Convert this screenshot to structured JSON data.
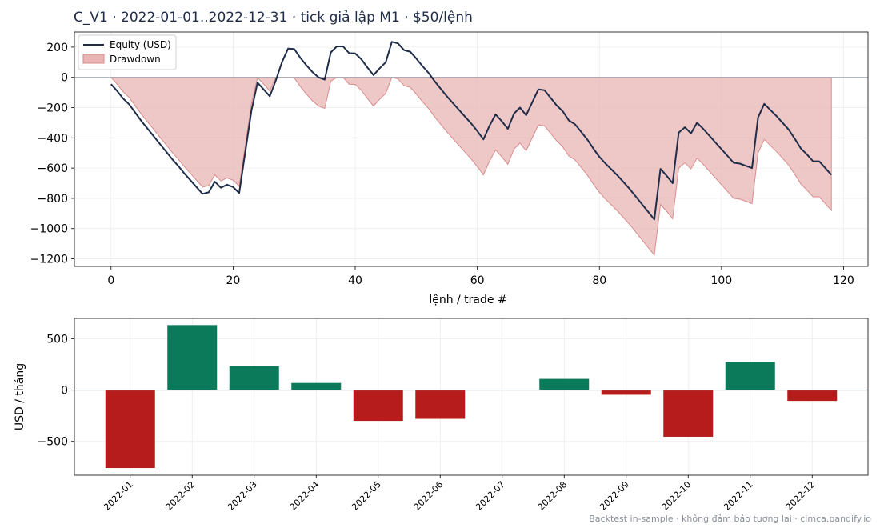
{
  "title": "C_V1 · 2022-01-01..2022-12-31 · tick giả lập M1 · $50/lệnh",
  "footer": "Backtest in-sample · không đảm bảo tương lai · clmca.pandify.io",
  "colors": {
    "equity": "#1f2d4a",
    "drawdown_fill": "#e8b4b4",
    "drawdown_edge": "#d98c8c",
    "positive": "#0b7a5a",
    "negative": "#b71c1c",
    "zero_line": "#9aa3b0",
    "grid": "#ececec"
  },
  "chart_data": [
    {
      "type": "line",
      "xlabel": "lệnh / trade #",
      "ylabel": "",
      "xlim": [
        -6,
        124
      ],
      "ylim": [
        -1250,
        300
      ],
      "grid": true,
      "legend_position": "top-left",
      "x_ticks": [
        0,
        20,
        40,
        60,
        80,
        100,
        120
      ],
      "y_ticks": [
        200,
        0,
        -200,
        -400,
        -600,
        -800,
        -1000,
        -1200
      ],
      "series": [
        {
          "name": "Equity (USD)",
          "x": [
            0,
            1,
            2,
            3,
            4,
            5,
            6,
            7,
            8,
            9,
            10,
            11,
            12,
            13,
            14,
            15,
            16,
            17,
            18,
            19,
            20,
            21,
            22,
            23,
            24,
            25,
            26,
            27,
            28,
            29,
            30,
            31,
            32,
            33,
            34,
            35,
            36,
            37,
            38,
            39,
            40,
            41,
            42,
            43,
            44,
            45,
            46,
            47,
            48,
            49,
            50,
            51,
            52,
            53,
            54,
            55,
            56,
            57,
            58,
            59,
            60,
            61,
            62,
            63,
            64,
            65,
            66,
            67,
            68,
            69,
            70,
            71,
            72,
            73,
            74,
            75,
            76,
            77,
            78,
            79,
            80,
            81,
            82,
            83,
            84,
            85,
            86,
            87,
            88,
            89,
            90,
            91,
            92,
            93,
            94,
            95,
            96,
            97,
            98,
            99,
            100,
            101,
            102,
            103,
            104,
            105,
            106,
            107,
            108,
            109,
            110,
            111,
            112,
            113,
            114,
            115,
            116,
            117,
            118
          ],
          "values": [
            -45,
            -90,
            -140,
            -180,
            -235,
            -290,
            -340,
            -390,
            -440,
            -490,
            -540,
            -585,
            -635,
            -680,
            -725,
            -770,
            -760,
            -690,
            -730,
            -710,
            -725,
            -765,
            -490,
            -220,
            -35,
            -80,
            -125,
            -20,
            100,
            190,
            188,
            130,
            80,
            35,
            0,
            -15,
            165,
            205,
            205,
            160,
            158,
            120,
            65,
            15,
            60,
            100,
            235,
            225,
            180,
            170,
            125,
            75,
            30,
            -25,
            -75,
            -125,
            -170,
            -215,
            -260,
            -305,
            -355,
            -410,
            -320,
            -245,
            -290,
            -340,
            -240,
            -200,
            -250,
            -165,
            -80,
            -85,
            -135,
            -185,
            -225,
            -285,
            -310,
            -360,
            -410,
            -470,
            -525,
            -570,
            -610,
            -650,
            -695,
            -740,
            -790,
            -840,
            -890,
            -940,
            -605,
            -650,
            -700,
            -365,
            -330,
            -370,
            -300,
            -340,
            -385,
            -430,
            -475,
            -520,
            -565,
            -570,
            -585,
            -600,
            -265,
            -175,
            -215,
            -255,
            -300,
            -345,
            -405,
            -470,
            -510,
            -555,
            -555,
            -600,
            -645
          ]
        },
        {
          "name": "Drawdown",
          "x": [
            0,
            1,
            2,
            3,
            4,
            5,
            6,
            7,
            8,
            9,
            10,
            11,
            12,
            13,
            14,
            15,
            16,
            17,
            18,
            19,
            20,
            21,
            22,
            23,
            24,
            25,
            26,
            27,
            28,
            29,
            30,
            31,
            32,
            33,
            34,
            35,
            36,
            37,
            38,
            39,
            40,
            41,
            42,
            43,
            44,
            45,
            46,
            47,
            48,
            49,
            50,
            51,
            52,
            53,
            54,
            55,
            56,
            57,
            58,
            59,
            60,
            61,
            62,
            63,
            64,
            65,
            66,
            67,
            68,
            69,
            70,
            71,
            72,
            73,
            74,
            75,
            76,
            77,
            78,
            79,
            80,
            81,
            82,
            83,
            84,
            85,
            86,
            87,
            88,
            89,
            90,
            91,
            92,
            93,
            94,
            95,
            96,
            97,
            98,
            99,
            100,
            101,
            102,
            103,
            104,
            105,
            106,
            107,
            108,
            109,
            110,
            111,
            112,
            113,
            114,
            115,
            116,
            117,
            118
          ],
          "values": [
            0,
            -45,
            -95,
            -135,
            -190,
            -245,
            -295,
            -345,
            -395,
            -445,
            -495,
            -540,
            -590,
            -635,
            -680,
            -725,
            -715,
            -645,
            -685,
            -665,
            -680,
            -720,
            -445,
            -175,
            0,
            -45,
            -90,
            0,
            0,
            0,
            -2,
            -60,
            -110,
            -155,
            -190,
            -205,
            -25,
            0,
            0,
            -45,
            -47,
            -85,
            -140,
            -190,
            -145,
            -105,
            0,
            -10,
            -55,
            -65,
            -110,
            -160,
            -205,
            -260,
            -310,
            -360,
            -405,
            -450,
            -495,
            -540,
            -590,
            -645,
            -555,
            -480,
            -525,
            -575,
            -475,
            -435,
            -485,
            -400,
            -315,
            -320,
            -370,
            -420,
            -460,
            -520,
            -545,
            -595,
            -645,
            -705,
            -760,
            -805,
            -845,
            -885,
            -930,
            -975,
            -1025,
            -1075,
            -1125,
            -1175,
            -840,
            -885,
            -935,
            -600,
            -565,
            -605,
            -535,
            -575,
            -620,
            -665,
            -710,
            -755,
            -800,
            -805,
            -820,
            -835,
            -500,
            -410,
            -450,
            -490,
            -535,
            -580,
            -640,
            -705,
            -745,
            -790,
            -790,
            -835,
            -880
          ]
        }
      ]
    },
    {
      "type": "bar",
      "xlabel": "",
      "ylabel": "USD / tháng",
      "ylim": [
        -830,
        700
      ],
      "grid": true,
      "y_ticks": [
        500,
        0,
        -500
      ],
      "categories": [
        "2022-01",
        "2022-02",
        "2022-03",
        "2022-04",
        "2022-05",
        "2022-06",
        "2022-07",
        "2022-08",
        "2022-09",
        "2022-10",
        "2022-11",
        "2022-12"
      ],
      "values": [
        -760,
        635,
        235,
        70,
        -300,
        -280,
        0,
        110,
        -45,
        -455,
        275,
        -105
      ]
    }
  ]
}
